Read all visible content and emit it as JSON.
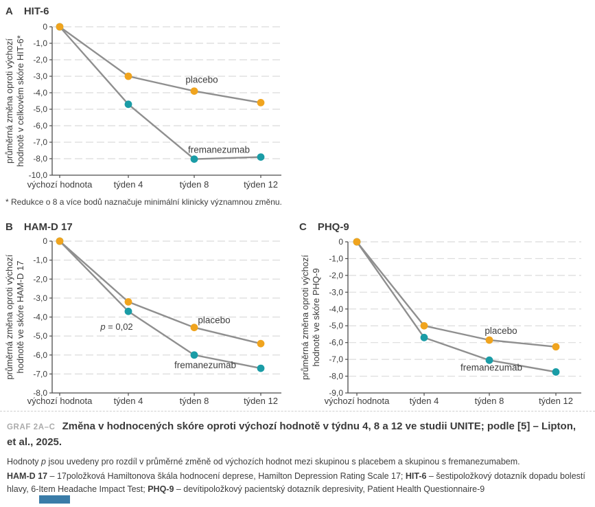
{
  "page": {
    "caption_label": "GRAF 2A–C",
    "caption_text": "Změna v hodnocených skóre oproti výchozí hodnotě v týdnu 4, 8 a 12 ve studii UNITE; podle [5] – Lipton, et al., 2025.",
    "note_p": [
      {
        "text": "Hodnoty "
      },
      {
        "text": "p",
        "italic": true
      },
      {
        "text": " jsou uvedeny pro rozdíl v průměrné změně od výchozích hodnot mezi skupinou s placebem a skupinou s fremanezumabem."
      }
    ],
    "abbreviations": [
      {
        "text": "HAM-D 17",
        "bold": true
      },
      {
        "text": " – 17položková Hamiltonova škála hodnocení deprese, Hamilton Depression Rating Scale 17; "
      },
      {
        "text": "HIT-6",
        "bold": true
      },
      {
        "text": " – šestipoložkový dotazník dopadu bolestí hlavy, 6-Item Headache Impact Test; "
      },
      {
        "text": "PHQ-9",
        "bold": true
      },
      {
        "text": " – devítipoložkový pacientský dotazník depresivity, Patient Health Questionnaire-9"
      }
    ]
  },
  "colors": {
    "placebo": "#F0A41E",
    "fremanezumab": "#1A9CA6",
    "trend_line": "#8F8F8F",
    "grid": "#DBDBDB",
    "axis": "#4A4A4A",
    "text": "#3C3C3C",
    "caption_label": "#ABABAB",
    "footer_bar": "#3A7CA8"
  },
  "chart_data": [
    {
      "type": "line",
      "panel": "A",
      "title": "HIT-6",
      "ylabel_lines": [
        "průměrná změna oproti výchozí",
        "hodnotě v celkovém skóre HIT-6*"
      ],
      "categories": [
        "výchozí hodnota",
        "týden 4",
        "týden 8",
        "týden 12"
      ],
      "yticks": [
        0,
        -1,
        -2,
        -3,
        -4,
        -5,
        -6,
        -7,
        -8,
        -10
      ],
      "ytick_labels": [
        "0",
        "-1,0",
        "-2,0",
        "-3,0",
        "-4,0",
        "-5,0",
        "-6,0",
        "-7,0",
        "-8,0",
        "-10,0"
      ],
      "ylim": [
        0,
        -10
      ],
      "grid": true,
      "series": [
        {
          "name": "placebo",
          "label": "placebo",
          "values": [
            0,
            -3.0,
            -3.9,
            -4.6
          ]
        },
        {
          "name": "fremanezumab",
          "label": "fremanezumab",
          "values": [
            0,
            -4.7,
            -8.05,
            -7.9
          ]
        }
      ],
      "footnote": "* Redukce o 8 a více bodů naznačuje minimální klinicky významnou změnu."
    },
    {
      "type": "line",
      "panel": "B",
      "title": "HAM-D 17",
      "ylabel_lines": [
        "průměrná změna oproti výchozí",
        "hodnotě ve skóre HAM-D 17"
      ],
      "categories": [
        "výchozí hodnota",
        "týden 4",
        "týden 8",
        "týden 12"
      ],
      "yticks": [
        0,
        -1,
        -2,
        -3,
        -4,
        -5,
        -6,
        -7,
        -8
      ],
      "ytick_labels": [
        "0",
        "-1,0",
        "-2,0",
        "-3,0",
        "-4,0",
        "-5,0",
        "-6,0",
        "-7,0",
        "-8,0"
      ],
      "ylim": [
        0,
        -8
      ],
      "grid": true,
      "annotation": {
        "italic": "p",
        "text": " = 0,02"
      },
      "series": [
        {
          "name": "placebo",
          "label": "placebo",
          "values": [
            0,
            -3.2,
            -4.55,
            -5.4
          ]
        },
        {
          "name": "fremanezumab",
          "label": "fremanezumab",
          "values": [
            0,
            -3.7,
            -6.0,
            -6.7
          ]
        }
      ]
    },
    {
      "type": "line",
      "panel": "C",
      "title": "PHQ-9",
      "ylabel_lines": [
        "průměrná změna oproti výchozí",
        "hodnotě ve skóre PHQ-9"
      ],
      "categories": [
        "výchozí hodnota",
        "týden 4",
        "týden 8",
        "týden 12"
      ],
      "yticks": [
        0,
        -1,
        -2,
        -3,
        -4,
        -5,
        -6,
        -7,
        -8,
        -9
      ],
      "ytick_labels": [
        "0",
        "-1,0",
        "-2,0",
        "-3,0",
        "-4,0",
        "-5,0",
        "-6,0",
        "-7,0",
        "-8,0",
        "-9,0"
      ],
      "ylim": [
        0,
        -9
      ],
      "grid": true,
      "series": [
        {
          "name": "placebo",
          "label": "placebo",
          "values": [
            0,
            -5.0,
            -5.85,
            -6.25
          ]
        },
        {
          "name": "fremanezumab",
          "label": "fremanezumab",
          "values": [
            0,
            -5.7,
            -7.05,
            -7.75
          ]
        }
      ]
    }
  ]
}
